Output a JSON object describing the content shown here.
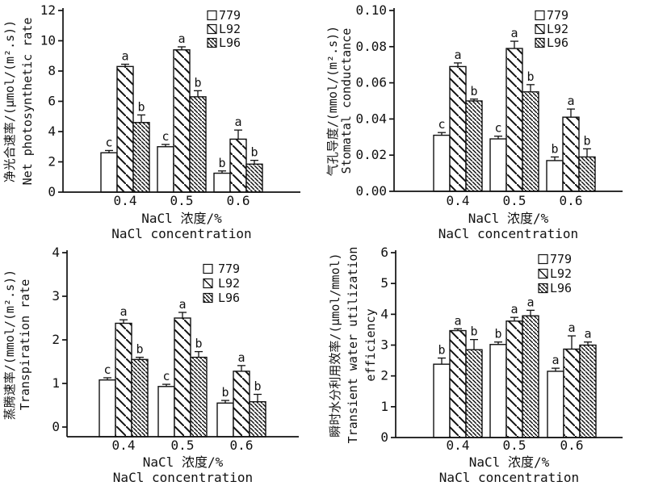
{
  "figure": {
    "background": "#ffffff",
    "ink_color": "#111111",
    "legend_labels": [
      "779",
      "L92",
      "L96"
    ]
  },
  "chart_data": [
    {
      "type": "bar",
      "position": "top-left",
      "ylabel_cn": "净光合速率/(μmol/(m².s))",
      "ylabel_en": [
        "Net photosynthetic rate"
      ],
      "xlabel_cn": "NaCl 浓度/%",
      "xlabel_en": "NaCl concentration",
      "categories": [
        "0.4",
        "0.5",
        "0.6"
      ],
      "series": [
        {
          "name": "779",
          "pattern": "open",
          "values": [
            2.6,
            3.0,
            1.25
          ],
          "errors": [
            0.15,
            0.15,
            0.15
          ],
          "letters": [
            "c",
            "c",
            "b"
          ]
        },
        {
          "name": "L92",
          "pattern": "hatch-wide",
          "values": [
            8.3,
            9.4,
            3.5
          ],
          "errors": [
            0.15,
            0.2,
            0.6
          ],
          "letters": [
            "a",
            "a",
            "a"
          ]
        },
        {
          "name": "L96",
          "pattern": "hatch-dense",
          "values": [
            4.6,
            6.3,
            1.85
          ],
          "errors": [
            0.5,
            0.4,
            0.25
          ],
          "letters": [
            "b",
            "b",
            "b"
          ]
        }
      ],
      "ylim": [
        0,
        12
      ],
      "ytick_step": 2,
      "ytick_decimals": 0,
      "grid": false,
      "legend_position": "top-right"
    },
    {
      "type": "bar",
      "position": "top-right",
      "ylabel_cn": "气孔导度/(mmol/(m².s))",
      "ylabel_en": [
        "Stomatal conductance"
      ],
      "xlabel_cn": "NaCl 浓度/%",
      "xlabel_en": "NaCl concentration",
      "categories": [
        "0.4",
        "0.5",
        "0.6"
      ],
      "series": [
        {
          "name": "779",
          "pattern": "open",
          "values": [
            0.031,
            0.029,
            0.017
          ],
          "errors": [
            0.0015,
            0.0015,
            0.002
          ],
          "letters": [
            "c",
            "c",
            "b"
          ]
        },
        {
          "name": "L92",
          "pattern": "hatch-wide",
          "values": [
            0.069,
            0.079,
            0.041
          ],
          "errors": [
            0.002,
            0.004,
            0.0045
          ],
          "letters": [
            "a",
            "a",
            "a"
          ]
        },
        {
          "name": "L96",
          "pattern": "hatch-dense",
          "values": [
            0.05,
            0.055,
            0.019
          ],
          "errors": [
            0.001,
            0.004,
            0.0045
          ],
          "letters": [
            "b",
            "b",
            "b"
          ]
        }
      ],
      "ylim": [
        0,
        0.1
      ],
      "ytick_step": 0.02,
      "ytick_decimals": 2,
      "grid": false,
      "legend_position": "top-right"
    },
    {
      "type": "bar",
      "position": "bottom-left",
      "ylabel_cn": "蒸腾速率/(mmol/(m².s))",
      "ylabel_en": [
        "Transpiration rate"
      ],
      "xlabel_cn": "NaCl 浓度/%",
      "xlabel_en": "NaCl concentration",
      "categories": [
        "0.4",
        "0.5",
        "0.6"
      ],
      "series": [
        {
          "name": "779",
          "pattern": "open",
          "values": [
            1.08,
            0.93,
            0.55
          ],
          "errors": [
            0.05,
            0.05,
            0.06
          ],
          "letters": [
            "c",
            "c",
            "b"
          ]
        },
        {
          "name": "L92",
          "pattern": "hatch-wide",
          "values": [
            2.38,
            2.5,
            1.28
          ],
          "errors": [
            0.08,
            0.13,
            0.13
          ],
          "letters": [
            "a",
            "a",
            "a"
          ]
        },
        {
          "name": "L96",
          "pattern": "hatch-dense",
          "values": [
            1.55,
            1.6,
            0.58
          ],
          "errors": [
            0.05,
            0.13,
            0.17
          ],
          "letters": [
            "b",
            "b",
            "b"
          ]
        }
      ],
      "ylim": [
        0,
        4
      ],
      "ytick_step": 1,
      "ytick_decimals": 0,
      "grid": false,
      "legend_position": "upper-right-inside"
    },
    {
      "type": "bar",
      "position": "bottom-right",
      "ylabel_cn": "瞬时水分利用效率/(μmol/mmol)",
      "ylabel_en": [
        "Transient water utilization",
        "efficiency"
      ],
      "xlabel_cn": "NaCl 浓度/%",
      "xlabel_en": "NaCl concentration",
      "categories": [
        "0.4",
        "0.5",
        "0.6"
      ],
      "series": [
        {
          "name": "779",
          "pattern": "open",
          "values": [
            2.38,
            3.02,
            2.15
          ],
          "errors": [
            0.2,
            0.08,
            0.1
          ],
          "letters": [
            "b",
            "b",
            "a"
          ]
        },
        {
          "name": "L92",
          "pattern": "hatch-wide",
          "values": [
            3.47,
            3.78,
            2.87
          ],
          "errors": [
            0.06,
            0.12,
            0.43
          ],
          "letters": [
            "a",
            "a",
            "a"
          ]
        },
        {
          "name": "L96",
          "pattern": "hatch-dense",
          "values": [
            2.85,
            3.95,
            3.0
          ],
          "errors": [
            0.33,
            0.18,
            0.1
          ],
          "letters": [
            "b",
            "a",
            "a"
          ]
        }
      ],
      "ylim": [
        0,
        6
      ],
      "ytick_step": 1,
      "ytick_decimals": 0,
      "grid": false,
      "legend_position": "top-right"
    }
  ]
}
